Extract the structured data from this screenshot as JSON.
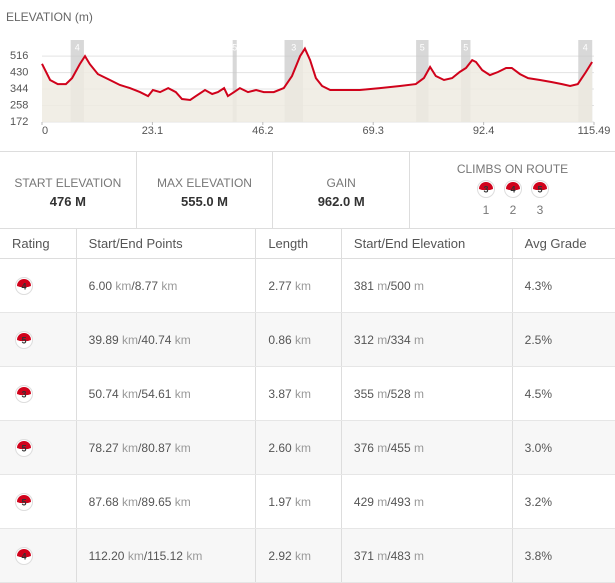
{
  "chart_data": {
    "type": "line",
    "title": "ELEVATION (m)",
    "x": [
      0,
      1.7,
      3.3,
      5.0,
      6.3,
      7.9,
      9.0,
      10.0,
      11.7,
      14.2,
      16.3,
      18.4,
      20.5,
      22.2,
      23.2,
      24.7,
      26.4,
      28.0,
      29.3,
      31.0,
      32.2,
      34.1,
      35.6,
      36.8,
      38.1,
      38.9,
      40.2,
      41.4,
      43.1,
      44.8,
      46.4,
      48.5,
      50.6,
      52.3,
      54.0,
      55.0,
      56.1,
      57.3,
      58.6,
      60.3,
      62.3,
      66.5,
      70.7,
      74.9,
      78.2,
      79.9,
      81.2,
      82.4,
      84.1,
      85.8,
      87.4,
      88.7,
      90.0,
      90.8,
      92.1,
      93.7,
      95.4,
      97.1,
      98.3,
      100.0,
      101.7,
      104.2,
      106.7,
      108.8,
      110.5,
      112.1,
      113.8,
      115.1
    ],
    "series": [
      {
        "name": "Elevation",
        "color": "#d0021b",
        "values": [
          476,
          391,
          370,
          370,
          401,
          474,
          516,
          474,
          422,
          391,
          365,
          349,
          328,
          307,
          339,
          328,
          349,
          328,
          292,
          287,
          307,
          339,
          318,
          328,
          349,
          307,
          328,
          349,
          328,
          339,
          328,
          328,
          349,
          412,
          516,
          555,
          495,
          401,
          360,
          339,
          339,
          339,
          349,
          360,
          370,
          401,
          459,
          412,
          391,
          401,
          433,
          454,
          495,
          485,
          443,
          417,
          433,
          454,
          454,
          422,
          401,
          391,
          380,
          370,
          360,
          370,
          433,
          485
        ]
      }
    ],
    "area_color": "#efebe2",
    "xlim": [
      0,
      115.49
    ],
    "xticks": [
      0,
      23.1,
      46.2,
      69.3,
      92.4,
      115.49
    ],
    "ylim": [
      172,
      600
    ],
    "yticks": [
      516,
      430,
      344,
      258,
      172
    ],
    "grid": true,
    "climbs": [
      {
        "x": [
          6.0,
          8.77
        ],
        "rating": 4
      },
      {
        "x": [
          39.89,
          40.74
        ],
        "rating": 5
      },
      {
        "x": [
          50.74,
          54.61
        ],
        "rating": 3
      },
      {
        "x": [
          78.27,
          80.87
        ],
        "rating": 5
      },
      {
        "x": [
          87.68,
          89.65
        ],
        "rating": 5
      },
      {
        "x": [
          112.2,
          115.12
        ],
        "rating": 4
      }
    ]
  },
  "stats": [
    {
      "label": "START ELEVATION",
      "value": "476 M"
    },
    {
      "label": "MAX ELEVATION",
      "value": "555.0 M"
    },
    {
      "label": "GAIN",
      "value": "962.0 M"
    }
  ],
  "climbs_on_route": {
    "label": "CLIMBS ON ROUTE",
    "items": [
      {
        "rating": 3,
        "caption": "1"
      },
      {
        "rating": 4,
        "caption": "2"
      },
      {
        "rating": 5,
        "caption": "3"
      }
    ]
  },
  "table": {
    "headers": [
      "Rating",
      "Start/End Points",
      "Length",
      "Start/End Elevation",
      "Avg Grade"
    ],
    "units": {
      "distance": "km",
      "elevation": "m"
    },
    "rows": [
      {
        "rating": 4,
        "start": "6.00",
        "end": "8.77",
        "length": "2.77",
        "elev_start": "381",
        "elev_end": "500",
        "grade": "4.3%"
      },
      {
        "rating": 5,
        "start": "39.89",
        "end": "40.74",
        "length": "0.86",
        "elev_start": "312",
        "elev_end": "334",
        "grade": "2.5%"
      },
      {
        "rating": 3,
        "start": "50.74",
        "end": "54.61",
        "length": "3.87",
        "elev_start": "355",
        "elev_end": "528",
        "grade": "4.5%"
      },
      {
        "rating": 5,
        "start": "78.27",
        "end": "80.87",
        "length": "2.60",
        "elev_start": "376",
        "elev_end": "455",
        "grade": "3.0%"
      },
      {
        "rating": 5,
        "start": "87.68",
        "end": "89.65",
        "length": "1.97",
        "elev_start": "429",
        "elev_end": "493",
        "grade": "3.2%"
      },
      {
        "rating": 4,
        "start": "112.20",
        "end": "115.12",
        "length": "2.92",
        "elev_start": "371",
        "elev_end": "483",
        "grade": "3.8%"
      }
    ]
  }
}
